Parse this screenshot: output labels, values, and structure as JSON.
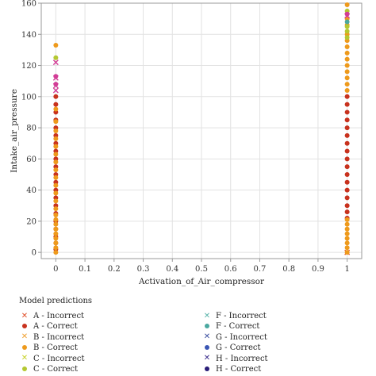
{
  "chart_data": {
    "type": "scatter",
    "xlabel": "Activation_of_Air_compressor",
    "ylabel": "Intake_air_pressure",
    "xlim": [
      -0.05,
      1.05
    ],
    "ylim": [
      -4,
      160
    ],
    "xticks": [
      "0",
      "0.1",
      "0.2",
      "0.3",
      "0.4",
      "0.5",
      "0.6",
      "0.7",
      "0.8",
      "0.9",
      "1"
    ],
    "yticks": [
      "0",
      "20",
      "40",
      "60",
      "80",
      "100",
      "120",
      "140",
      "160"
    ],
    "grid": true,
    "legend": {
      "title": "Model predictions",
      "placement": "below"
    },
    "series": [
      {
        "name": "A - Incorrect",
        "marker": "x",
        "color": "#e0502a",
        "points": [
          [
            1,
            0
          ]
        ]
      },
      {
        "name": "A - Correct",
        "marker": "o",
        "color": "#c8321e",
        "points": [
          [
            0,
            2
          ],
          [
            0,
            6
          ],
          [
            0,
            10
          ],
          [
            0,
            15
          ],
          [
            0,
            20
          ],
          [
            0,
            25
          ],
          [
            0,
            30
          ],
          [
            0,
            35
          ],
          [
            0,
            40
          ],
          [
            0,
            45
          ],
          [
            0,
            50
          ],
          [
            0,
            55
          ],
          [
            0,
            60
          ],
          [
            0,
            65
          ],
          [
            0,
            70
          ],
          [
            0,
            75
          ],
          [
            0,
            80
          ],
          [
            0,
            85
          ],
          [
            0,
            90
          ],
          [
            0,
            95
          ],
          [
            0,
            100
          ],
          [
            1,
            22
          ],
          [
            1,
            26
          ],
          [
            1,
            30
          ],
          [
            1,
            35
          ],
          [
            1,
            40
          ],
          [
            1,
            45
          ],
          [
            1,
            50
          ],
          [
            1,
            55
          ],
          [
            1,
            60
          ],
          [
            1,
            65
          ],
          [
            1,
            70
          ],
          [
            1,
            75
          ],
          [
            1,
            80
          ],
          [
            1,
            85
          ],
          [
            1,
            90
          ],
          [
            1,
            95
          ],
          [
            1,
            100
          ]
        ]
      },
      {
        "name": "B - Incorrect",
        "marker": "x",
        "color": "#f0a030",
        "points": []
      },
      {
        "name": "B - Correct",
        "marker": "o",
        "color": "#ee9a1c",
        "points": [
          [
            0,
            0
          ],
          [
            0,
            3
          ],
          [
            0,
            6
          ],
          [
            0,
            9
          ],
          [
            0,
            12
          ],
          [
            0,
            15
          ],
          [
            0,
            18
          ],
          [
            0,
            21
          ],
          [
            0,
            24
          ],
          [
            0,
            28
          ],
          [
            0,
            33
          ],
          [
            0,
            38
          ],
          [
            0,
            43
          ],
          [
            0,
            48
          ],
          [
            0,
            53
          ],
          [
            0,
            58
          ],
          [
            0,
            63
          ],
          [
            0,
            68
          ],
          [
            0,
            73
          ],
          [
            0,
            78
          ],
          [
            0,
            84
          ],
          [
            0,
            92
          ],
          [
            0,
            133
          ],
          [
            1,
            0
          ],
          [
            1,
            3
          ],
          [
            1,
            6
          ],
          [
            1,
            9
          ],
          [
            1,
            12
          ],
          [
            1,
            15
          ],
          [
            1,
            18
          ],
          [
            1,
            21
          ],
          [
            1,
            104
          ],
          [
            1,
            108
          ],
          [
            1,
            112
          ],
          [
            1,
            116
          ],
          [
            1,
            120
          ],
          [
            1,
            124
          ],
          [
            1,
            128
          ],
          [
            1,
            132
          ],
          [
            1,
            136
          ],
          [
            1,
            140
          ],
          [
            1,
            146
          ],
          [
            1,
            150
          ],
          [
            1,
            159
          ]
        ]
      },
      {
        "name": "C - Incorrect",
        "marker": "x",
        "color": "#c8d22a",
        "points": []
      },
      {
        "name": "C - Correct",
        "marker": "o",
        "color": "#b4c832",
        "points": [
          [
            0,
            125
          ],
          [
            1,
            138
          ],
          [
            1,
            142
          ],
          [
            1,
            145
          ],
          [
            1,
            155
          ]
        ]
      },
      {
        "name": "F - Incorrect",
        "marker": "x",
        "color": "#5ab4aa",
        "points": []
      },
      {
        "name": "F - Correct",
        "marker": "o",
        "color": "#4aa8a0",
        "points": [
          [
            1,
            148
          ]
        ]
      },
      {
        "name": "G - Incorrect",
        "marker": "x",
        "color": "#3a4ea0",
        "points": []
      },
      {
        "name": "G - Correct",
        "marker": "o",
        "color": "#3a56b4",
        "points": []
      },
      {
        "name": "H - Incorrect",
        "marker": "x",
        "color": "#3a2c8c",
        "points": []
      },
      {
        "name": "H - Correct",
        "marker": "o",
        "color": "#2a1e78",
        "points": []
      }
    ],
    "extra_points": [
      {
        "color": "#d23c96",
        "marker": "x",
        "points": [
          [
            0,
            122
          ],
          [
            0,
            112
          ],
          [
            0,
            107
          ],
          [
            0,
            104
          ],
          [
            1,
            152
          ]
        ]
      },
      {
        "color": "#d23c96",
        "marker": "o",
        "points": [
          [
            0,
            108
          ],
          [
            0,
            113
          ],
          [
            1,
            153
          ]
        ]
      }
    ]
  }
}
